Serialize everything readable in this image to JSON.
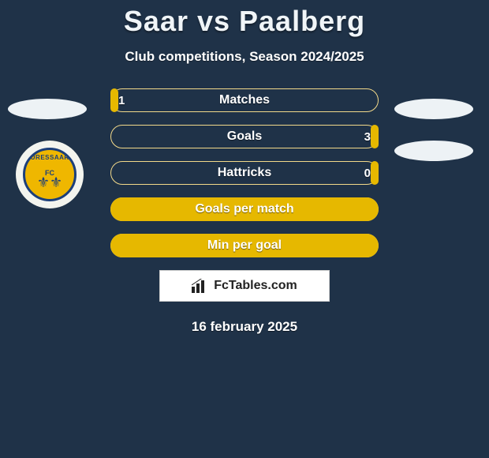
{
  "title": "Saar vs Paalberg",
  "subtitle": "Club competitions, Season 2024/2025",
  "date": "16 february 2025",
  "colors": {
    "background": "#1f3248",
    "bar_fill": "#e6b800",
    "bar_border": "#f2d98a",
    "text": "#ffffff",
    "footer_bg": "#ffffff",
    "footer_text": "#222222"
  },
  "badge": {
    "club_text": "KURESSAARE",
    "fc_text": "FC"
  },
  "footer": {
    "brand": "FcTables.com"
  },
  "stats": [
    {
      "label": "Matches",
      "left_value": "1",
      "right_value": "",
      "left_pct": 3,
      "right_pct": 0
    },
    {
      "label": "Goals",
      "left_value": "",
      "right_value": "3",
      "left_pct": 0,
      "right_pct": 3
    },
    {
      "label": "Hattricks",
      "left_value": "",
      "right_value": "0",
      "left_pct": 0,
      "right_pct": 3
    },
    {
      "label": "Goals per match",
      "left_value": "",
      "right_value": "",
      "left_pct": 0,
      "right_pct": 100
    },
    {
      "label": "Min per goal",
      "left_value": "",
      "right_value": "",
      "left_pct": 0,
      "right_pct": 100
    }
  ]
}
